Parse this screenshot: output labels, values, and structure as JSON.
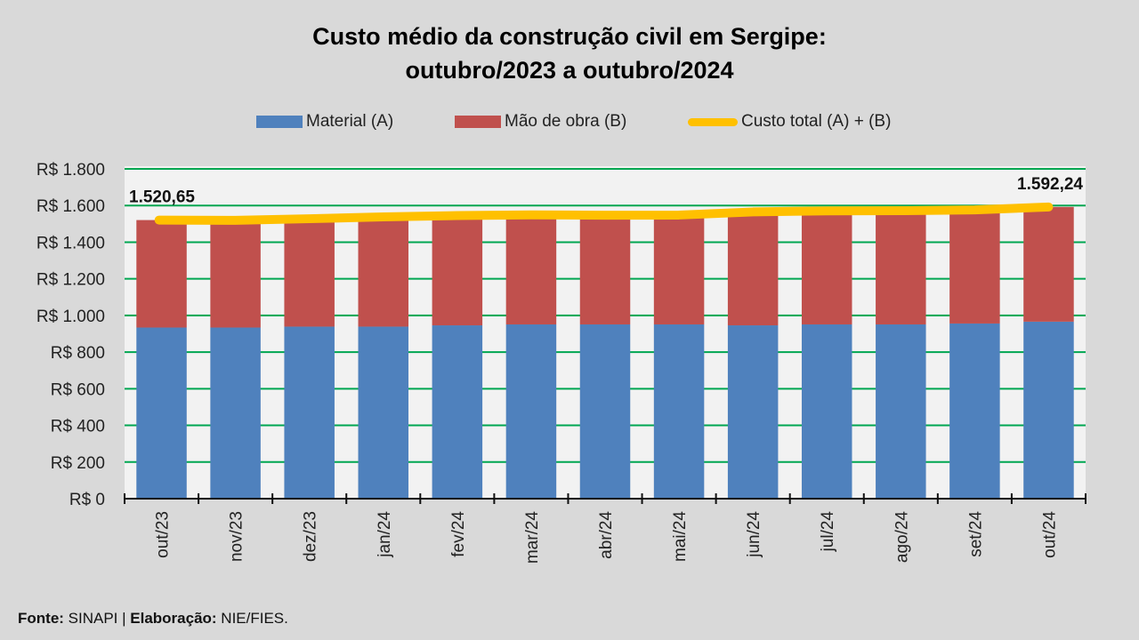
{
  "title_line1": "Custo médio da construção civil em Sergipe:",
  "title_line2": "outubro/2023 a outubro/2024",
  "legend": [
    {
      "label": "Material (A)",
      "color": "#4f81bd",
      "kind": "bar"
    },
    {
      "label": "Mão de obra (B)",
      "color": "#c0504d",
      "kind": "bar"
    },
    {
      "label": "Custo total (A) + (B)",
      "color": "#ffc000",
      "kind": "line"
    }
  ],
  "footer": {
    "source_label": "Fonte:",
    "source_value": " SINAPI | ",
    "author_label": "Elaboração:",
    "author_value": " NIE/FIES."
  },
  "colors": {
    "background": "#d9d9d9",
    "plot_background": "#f2f2f2",
    "gridline": "#00a651",
    "material": "#4f81bd",
    "labor": "#c0504d",
    "total": "#ffc000"
  },
  "chart_data": {
    "type": "bar",
    "stacked": true,
    "title": "Custo médio da construção civil em Sergipe: outubro/2023 a outubro/2024",
    "xlabel": "",
    "ylabel": "",
    "ylim": [
      0,
      1800
    ],
    "yticks": [
      0,
      200,
      400,
      600,
      800,
      1000,
      1200,
      1400,
      1600,
      1800
    ],
    "ytick_labels": [
      "R$ 0",
      "R$ 200",
      "R$ 400",
      "R$ 600",
      "R$ 800",
      "R$ 1.000",
      "R$ 1.200",
      "R$ 1.400",
      "R$ 1.600",
      "R$ 1.800"
    ],
    "grid": true,
    "legend_position": "top",
    "categories": [
      "out/23",
      "nov/23",
      "dez/23",
      "jan/24",
      "fev/24",
      "mar/24",
      "abr/24",
      "mai/24",
      "jun/24",
      "jul/24",
      "ago/24",
      "set/24",
      "out/24"
    ],
    "series": [
      {
        "name": "Material (A)",
        "type": "bar",
        "values": [
          934,
          934,
          939,
          939,
          946,
          951,
          951,
          951,
          946,
          951,
          951,
          956,
          966
        ]
      },
      {
        "name": "Mão de obra (B)",
        "type": "bar",
        "values": [
          586.65,
          585,
          589,
          599,
          599,
          598,
          596,
          597,
          619,
          620,
          621,
          620,
          626.24
        ]
      },
      {
        "name": "Custo total (A) + (B)",
        "type": "line",
        "values": [
          1520.65,
          1519,
          1528,
          1538,
          1545,
          1549,
          1547,
          1548,
          1565,
          1571,
          1572,
          1576,
          1592.24
        ]
      }
    ],
    "annotations": [
      {
        "category": "out/23",
        "text": "1.520,65"
      },
      {
        "category": "out/24",
        "text": "1.592,24"
      }
    ]
  }
}
